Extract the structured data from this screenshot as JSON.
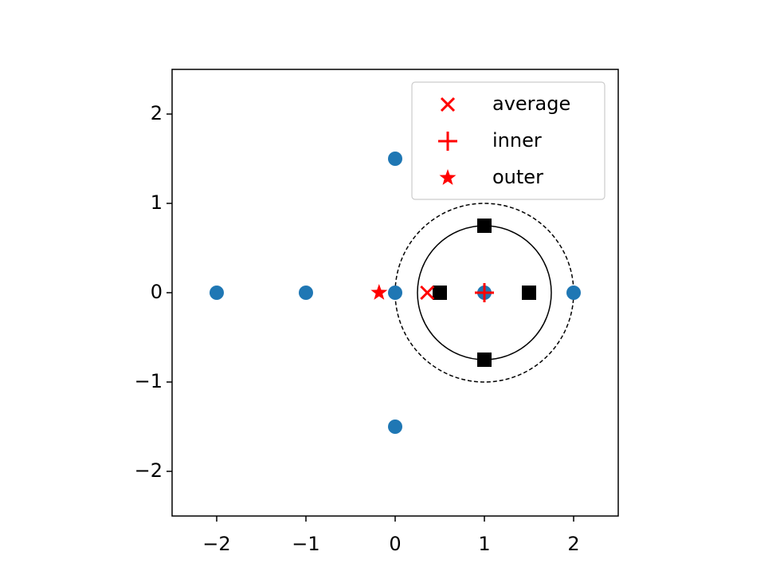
{
  "chart_data": {
    "type": "scatter",
    "xlim": [
      -2.5,
      2.5
    ],
    "ylim": [
      -2.5,
      2.5
    ],
    "xticks": [
      {
        "value": -2,
        "label": "−2"
      },
      {
        "value": -1,
        "label": "−1"
      },
      0,
      1,
      2
    ],
    "yticks": [
      {
        "value": -2,
        "label": "−2"
      },
      {
        "value": -1,
        "label": "−1"
      },
      0,
      1,
      2
    ],
    "legend": "upper right",
    "circles": [
      {
        "cx": 1,
        "cy": 0,
        "r": 0.75,
        "style": "solid",
        "color": "#000000"
      },
      {
        "cx": 1,
        "cy": 0,
        "r": 1,
        "style": "dashed",
        "color": "#000000"
      }
    ],
    "series": [
      {
        "marker": "circle",
        "color": "#1f77b4",
        "x": [
          -2,
          -1,
          0,
          2,
          0,
          0,
          1
        ],
        "y": [
          0,
          0,
          0,
          0,
          1.5,
          -1.5,
          0
        ]
      },
      {
        "marker": "square",
        "color": "#000000",
        "x": [
          0.5,
          1.5,
          1,
          1
        ],
        "y": [
          0,
          0,
          0.75,
          -0.75
        ]
      },
      {
        "name": "average",
        "marker": "x",
        "color": "#ff0000",
        "x": [
          0.36
        ],
        "y": [
          0
        ]
      },
      {
        "name": "inner",
        "marker": "plus",
        "color": "#ff0000",
        "x": [
          1
        ],
        "y": [
          0
        ]
      },
      {
        "name": "outer",
        "marker": "star",
        "color": "#ff0000",
        "x": [
          -0.18
        ],
        "y": [
          0
        ]
      }
    ]
  }
}
